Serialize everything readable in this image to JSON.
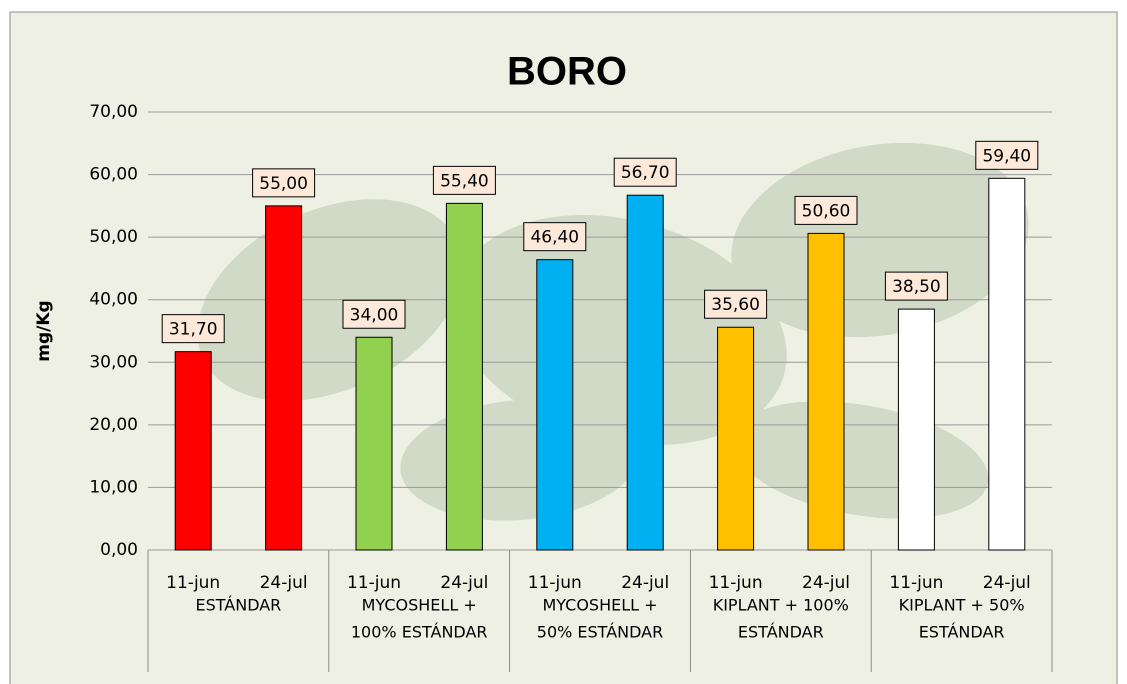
{
  "chart_data": {
    "type": "bar",
    "title": "BORO",
    "y_label": "mg/Kg",
    "ylim": [
      0,
      70
    ],
    "yticks": [
      {
        "value": 0,
        "label": "0,00"
      },
      {
        "value": 10,
        "label": "10,00"
      },
      {
        "value": 20,
        "label": "20,00"
      },
      {
        "value": 30,
        "label": "30,00"
      },
      {
        "value": 40,
        "label": "40,00"
      },
      {
        "value": 50,
        "label": "50,00"
      },
      {
        "value": 60,
        "label": "60,00"
      },
      {
        "value": 70,
        "label": "70,00"
      }
    ],
    "grid": true,
    "groups": [
      {
        "label": [
          "ESTÁNDAR"
        ],
        "color": "#ff0000",
        "categories": [
          "11-jun",
          "24-jul"
        ],
        "values": [
          31.7,
          55.0
        ],
        "value_labels": [
          "31,70",
          "55,00"
        ]
      },
      {
        "label": [
          "MYCOSHELL +",
          "100% ESTÁNDAR"
        ],
        "color": "#92d050",
        "categories": [
          "11-jun",
          "24-jul"
        ],
        "values": [
          34.0,
          55.4
        ],
        "value_labels": [
          "34,00",
          "55,40"
        ]
      },
      {
        "label": [
          "MYCOSHELL +",
          "50% ESTÁNDAR"
        ],
        "color": "#00b0f0",
        "categories": [
          "11-jun",
          "24-jul"
        ],
        "values": [
          46.4,
          56.7
        ],
        "value_labels": [
          "46,40",
          "56,70"
        ]
      },
      {
        "label": [
          "KIPLANT + 100%",
          "ESTÁNDAR"
        ],
        "color": "#ffc000",
        "categories": [
          "11-jun",
          "24-jul"
        ],
        "values": [
          35.6,
          50.6
        ],
        "value_labels": [
          "35,60",
          "50,60"
        ]
      },
      {
        "label": [
          "KIPLANT + 50%",
          "ESTÁNDAR"
        ],
        "color": "#ffffff",
        "categories": [
          "11-jun",
          "24-jul"
        ],
        "values": [
          38.5,
          59.4
        ],
        "value_labels": [
          "38,50",
          "59,40"
        ]
      }
    ]
  }
}
